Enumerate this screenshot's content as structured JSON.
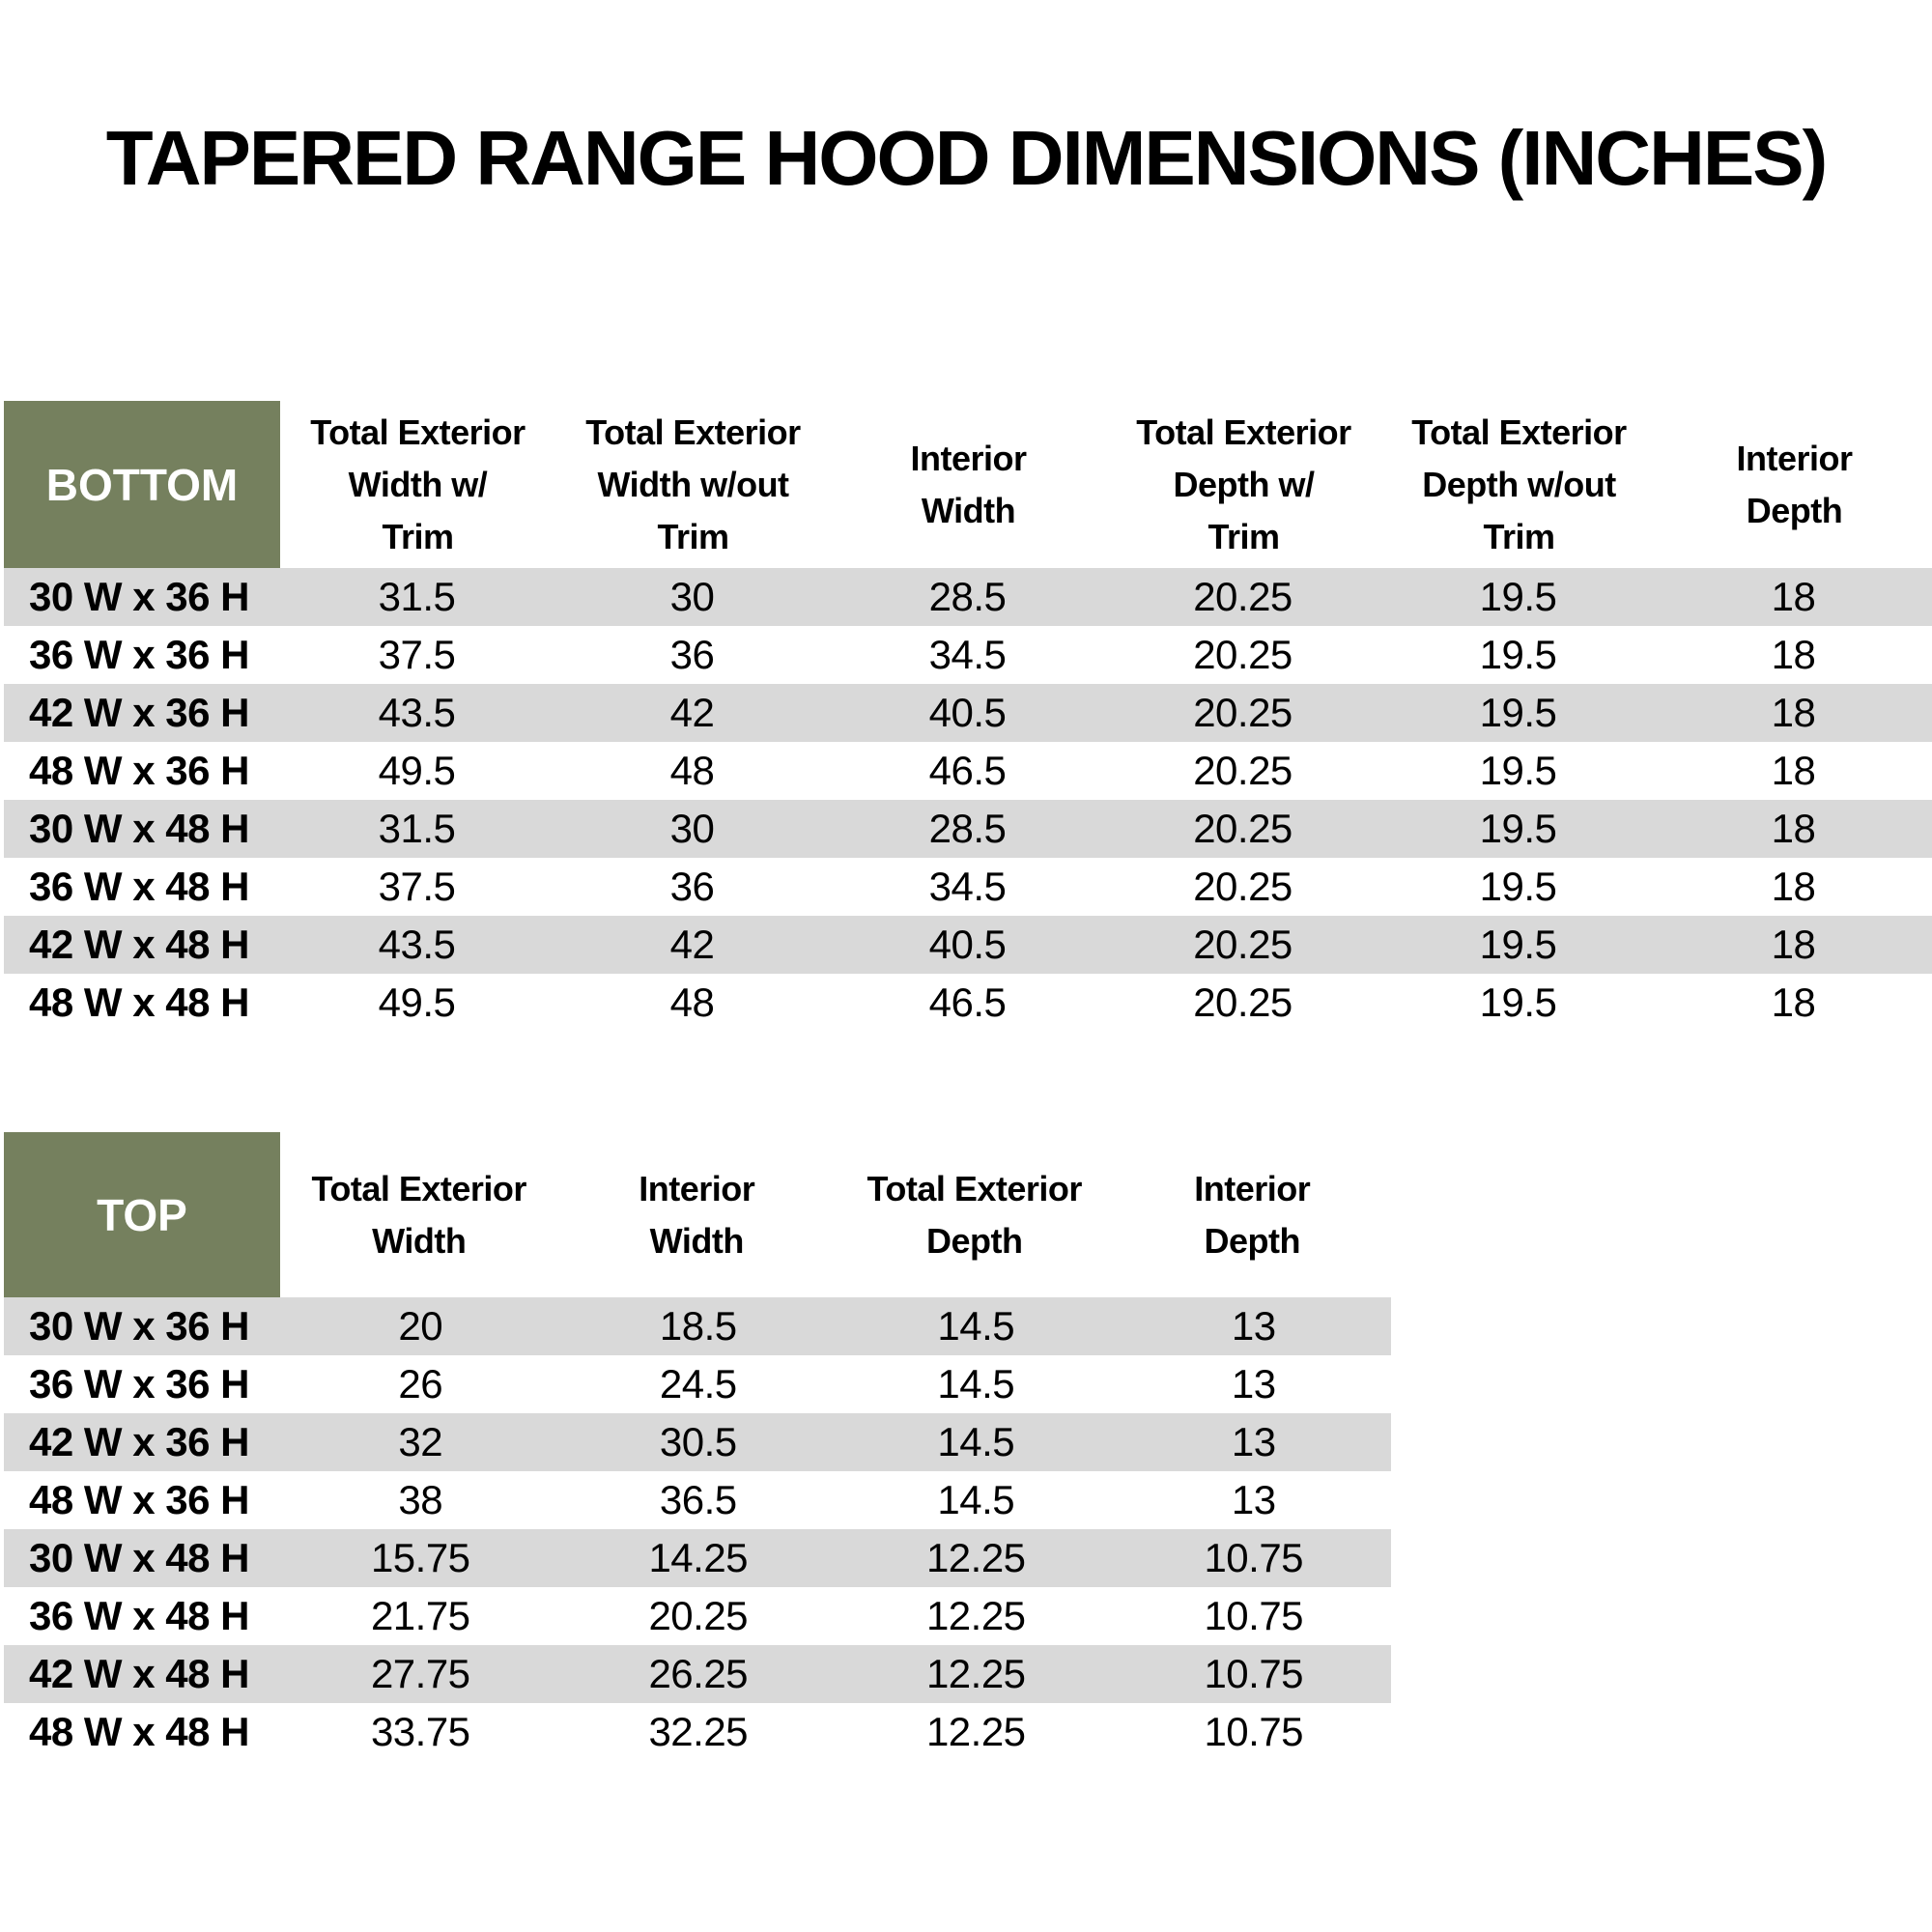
{
  "page": {
    "title": "TAPERED RANGE HOOD DIMENSIONS (INCHES)"
  },
  "colors": {
    "header_green": "#75805E",
    "stripe_gray": "#D9D9D9",
    "header_text": "#FFFFFF",
    "body_text": "#000000"
  },
  "bottom_table": {
    "corner_label": "BOTTOM",
    "columns": [
      "Total Exterior\nWidth w/\nTrim",
      "Total Exterior\nWidth w/out\nTrim",
      "Interior\nWidth",
      "Total Exterior\nDepth w/\nTrim",
      "Total Exterior\nDepth w/out\nTrim",
      "Interior\nDepth"
    ],
    "rows": [
      {
        "label": "30 W x 36 H",
        "values": [
          "31.5",
          "30",
          "28.5",
          "20.25",
          "19.5",
          "18"
        ]
      },
      {
        "label": "36 W x 36 H",
        "values": [
          "37.5",
          "36",
          "34.5",
          "20.25",
          "19.5",
          "18"
        ]
      },
      {
        "label": "42 W x 36 H",
        "values": [
          "43.5",
          "42",
          "40.5",
          "20.25",
          "19.5",
          "18"
        ]
      },
      {
        "label": "48 W x 36 H",
        "values": [
          "49.5",
          "48",
          "46.5",
          "20.25",
          "19.5",
          "18"
        ]
      },
      {
        "label": "30 W x 48 H",
        "values": [
          "31.5",
          "30",
          "28.5",
          "20.25",
          "19.5",
          "18"
        ]
      },
      {
        "label": "36 W x 48 H",
        "values": [
          "37.5",
          "36",
          "34.5",
          "20.25",
          "19.5",
          "18"
        ]
      },
      {
        "label": "42 W x 48 H",
        "values": [
          "43.5",
          "42",
          "40.5",
          "20.25",
          "19.5",
          "18"
        ]
      },
      {
        "label": "48 W x 48 H",
        "values": [
          "49.5",
          "48",
          "46.5",
          "20.25",
          "19.5",
          "18"
        ]
      }
    ]
  },
  "top_table": {
    "corner_label": "TOP",
    "columns": [
      "Total Exterior\nWidth",
      "Interior\nWidth",
      "Total Exterior\nDepth",
      "Interior\nDepth"
    ],
    "rows": [
      {
        "label": "30 W x 36 H",
        "values": [
          "20",
          "18.5",
          "14.5",
          "13"
        ]
      },
      {
        "label": "36 W x 36 H",
        "values": [
          "26",
          "24.5",
          "14.5",
          "13"
        ]
      },
      {
        "label": "42 W x 36 H",
        "values": [
          "32",
          "30.5",
          "14.5",
          "13"
        ]
      },
      {
        "label": "48 W x 36 H",
        "values": [
          "38",
          "36.5",
          "14.5",
          "13"
        ]
      },
      {
        "label": "30 W x 48 H",
        "values": [
          "15.75",
          "14.25",
          "12.25",
          "10.75"
        ]
      },
      {
        "label": "36 W x 48 H",
        "values": [
          "21.75",
          "20.25",
          "12.25",
          "10.75"
        ]
      },
      {
        "label": "42 W x 48 H",
        "values": [
          "27.75",
          "26.25",
          "12.25",
          "10.75"
        ]
      },
      {
        "label": "48 W x 48 H",
        "values": [
          "33.75",
          "32.25",
          "12.25",
          "10.75"
        ]
      }
    ]
  }
}
